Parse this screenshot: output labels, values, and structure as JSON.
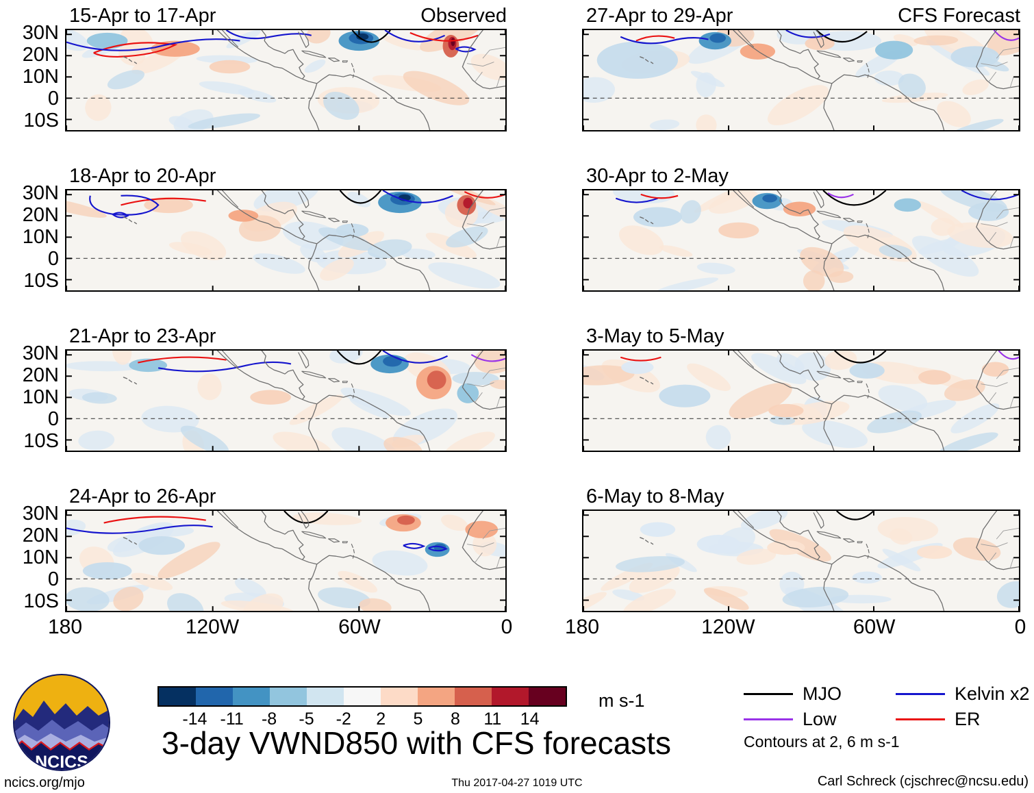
{
  "title": "3-day VWND850 with CFS forecasts",
  "header": {
    "left_column_label": "Observed",
    "right_column_label": "CFS Forecast"
  },
  "panels": [
    {
      "id": "obs-1",
      "column": "left",
      "row": 0,
      "title": "15-Apr to 17-Apr"
    },
    {
      "id": "obs-2",
      "column": "left",
      "row": 1,
      "title": "18-Apr to 20-Apr"
    },
    {
      "id": "obs-3",
      "column": "left",
      "row": 2,
      "title": "21-Apr to 23-Apr"
    },
    {
      "id": "obs-4",
      "column": "left",
      "row": 3,
      "title": "24-Apr to 26-Apr"
    },
    {
      "id": "fcst-1",
      "column": "right",
      "row": 0,
      "title": "27-Apr to 29-Apr"
    },
    {
      "id": "fcst-2",
      "column": "right",
      "row": 1,
      "title": "30-Apr to 2-May"
    },
    {
      "id": "fcst-3",
      "column": "right",
      "row": 2,
      "title": "3-May to 5-May"
    },
    {
      "id": "fcst-4",
      "column": "right",
      "row": 3,
      "title": "6-May to 8-May"
    }
  ],
  "axes": {
    "y_tick_labels": [
      "30N",
      "20N",
      "10N",
      "0",
      "10S"
    ],
    "x_tick_labels": [
      "180",
      "120W",
      "60W",
      "0"
    ]
  },
  "colorbar": {
    "tick_labels": [
      "-14",
      "-11",
      "-8",
      "-5",
      "-2",
      "2",
      "5",
      "8",
      "11",
      "14"
    ],
    "colors": [
      "#053061",
      "#2166ac",
      "#4393c3",
      "#92c5de",
      "#d1e5f0",
      "#f7f7f7",
      "#fddbc7",
      "#f4a582",
      "#d6604d",
      "#b2182b",
      "#67001f"
    ],
    "units": "m s-1"
  },
  "legend": {
    "items": [
      {
        "label": "MJO",
        "color": "#000000"
      },
      {
        "label": "Low",
        "color": "#9932e8"
      },
      {
        "label": "Kelvin x2",
        "color": "#1515cd"
      },
      {
        "label": "ER",
        "color": "#ea1212"
      }
    ],
    "note": "Contours at 2, 6 m s-1"
  },
  "logo": {
    "text": "NCICS"
  },
  "footer": {
    "left": "ncics.org/mjo",
    "center": "Thu 2017-04-27 1019 UTC",
    "right": "Carl Schreck (cjschrec@ncsu.edu)"
  },
  "chart_data": {
    "type": "heatmap",
    "title": "3-day VWND850 with CFS forecasts",
    "units": "m s-1",
    "shading_variable": "VWND850",
    "shading_levels": [
      -14,
      -11,
      -8,
      -5,
      -2,
      2,
      5,
      8,
      11,
      14
    ],
    "shading_colors": [
      "#053061",
      "#2166ac",
      "#4393c3",
      "#92c5de",
      "#d1e5f0",
      "#f7f7f7",
      "#fddbc7",
      "#f4a582",
      "#d6604d",
      "#b2182b",
      "#67001f"
    ],
    "x_axis": {
      "tick_labels": [
        "180",
        "120W",
        "60W",
        "0"
      ],
      "lon_range": [
        180,
        0
      ]
    },
    "y_axis": {
      "tick_labels": [
        "30N",
        "20N",
        "10N",
        "0",
        "10S"
      ]
    },
    "contour_levels": [
      2,
      6
    ],
    "contour_series": [
      {
        "name": "MJO",
        "color": "#000000"
      },
      {
        "name": "Low",
        "color": "#9932e8"
      },
      {
        "name": "Kelvin x2",
        "color": "#1515cd"
      },
      {
        "name": "ER",
        "color": "#ea1212"
      }
    ],
    "panel_groups": [
      {
        "label": "Observed",
        "panels": [
          "15-Apr to 17-Apr",
          "18-Apr to 20-Apr",
          "21-Apr to 23-Apr",
          "24-Apr to 26-Apr"
        ]
      },
      {
        "label": "CFS Forecast",
        "panels": [
          "27-Apr to 29-Apr",
          "30-Apr to 2-May",
          "3-May to 5-May",
          "6-May to 8-May"
        ]
      }
    ],
    "grid": false,
    "legend_position": "bottom-right"
  }
}
